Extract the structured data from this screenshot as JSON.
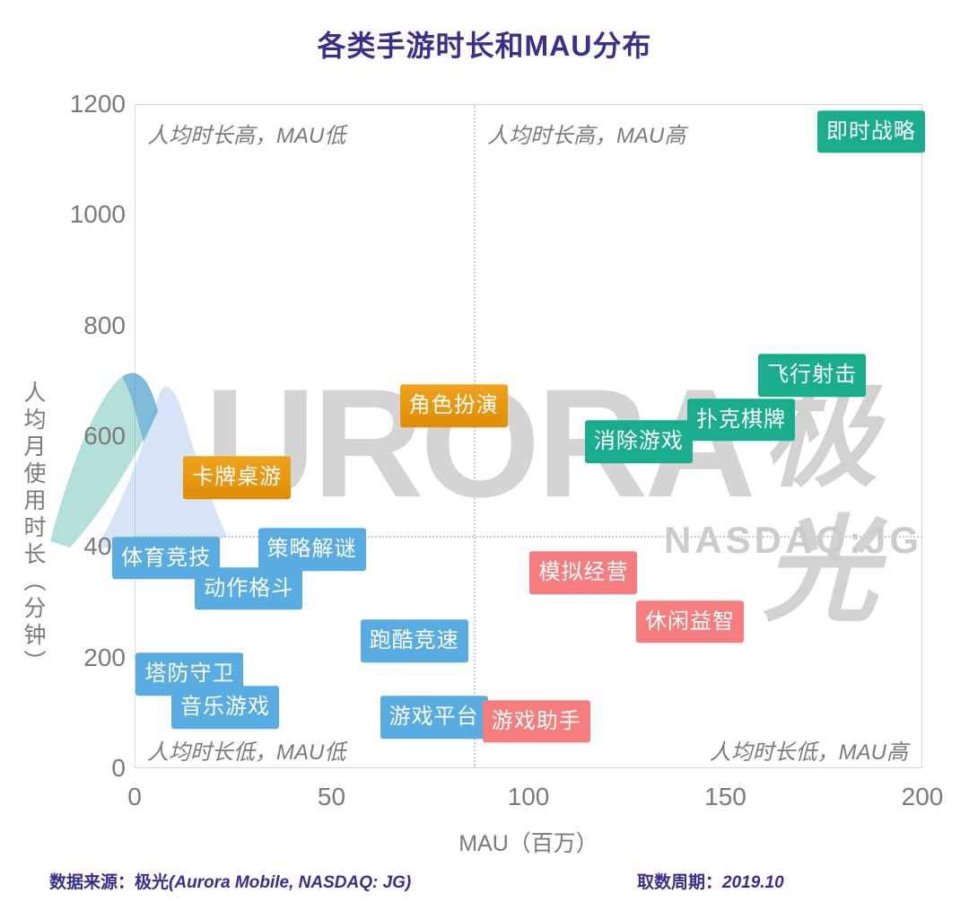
{
  "page": {
    "title": "各类手游时长和MAU分布",
    "watermark": {
      "brand_latin": "URORA",
      "brand_cn": "极光",
      "ticker": "NASDAQ:JG",
      "logo": "aurora-arc-logo"
    },
    "footer": {
      "source_label": "数据来源：极光",
      "source_latin": "(Aurora Mobile, NASDAQ: JG)",
      "period_label": "取数周期：",
      "period_value": "2019.10"
    }
  },
  "chart_data": {
    "type": "scatter",
    "title": "各类手游时长和MAU分布",
    "xlabel": "MAU（百万）",
    "ylabel": "人均月使用时长（分钟）",
    "xlim": [
      0,
      200
    ],
    "ylim": [
      0,
      1200
    ],
    "xticks": [
      0,
      50,
      100,
      150,
      200
    ],
    "yticks": [
      0,
      200,
      400,
      600,
      800,
      1000,
      1200
    ],
    "grid": false,
    "legend": "none",
    "quadrant_dividers": {
      "x_value": 86,
      "y_value": 420,
      "style": "dotted"
    },
    "quadrant_labels": {
      "top_left": "人均时长高，MAU低",
      "top_right": "人均时长高，MAU高",
      "bottom_left": "人均时长低，MAU低",
      "bottom_right": "人均时长低，MAU高"
    },
    "palette": {
      "green": "#19ad8d",
      "orange": "#e7950d",
      "blue": "#58ace1",
      "red": "#f57d7d"
    },
    "points": [
      {
        "label": "即时战略",
        "x": 187,
        "y": 1150,
        "color": "green"
      },
      {
        "label": "飞行射击",
        "x": 172,
        "y": 710,
        "color": "green"
      },
      {
        "label": "扑克棋牌",
        "x": 154,
        "y": 630,
        "color": "green"
      },
      {
        "label": "消除游戏",
        "x": 128,
        "y": 590,
        "color": "green"
      },
      {
        "label": "角色扮演",
        "x": 81,
        "y": 655,
        "color": "orange"
      },
      {
        "label": "卡牌桌游",
        "x": 26,
        "y": 525,
        "color": "orange"
      },
      {
        "label": "体育竞技",
        "x": 8,
        "y": 380,
        "color": "blue"
      },
      {
        "label": "策略解谜",
        "x": 45,
        "y": 395,
        "color": "blue"
      },
      {
        "label": "动作格斗",
        "x": 29,
        "y": 325,
        "color": "blue"
      },
      {
        "label": "跑酷竞速",
        "x": 71,
        "y": 230,
        "color": "blue"
      },
      {
        "label": "塔防守卫",
        "x": 14,
        "y": 170,
        "color": "blue"
      },
      {
        "label": "音乐游戏",
        "x": 23,
        "y": 110,
        "color": "blue"
      },
      {
        "label": "游戏平台",
        "x": 76,
        "y": 92,
        "color": "blue"
      },
      {
        "label": "模拟经营",
        "x": 114,
        "y": 353,
        "color": "red"
      },
      {
        "label": "休闲益智",
        "x": 141,
        "y": 265,
        "color": "red"
      },
      {
        "label": "游戏助手",
        "x": 102,
        "y": 85,
        "color": "red"
      }
    ]
  }
}
